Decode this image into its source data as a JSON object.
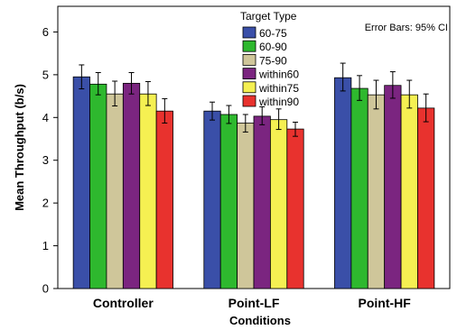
{
  "chart_data": {
    "type": "bar",
    "title": "",
    "xlabel": "Conditions",
    "ylabel": "Mean Throughput (b/s)",
    "ylim": [
      0,
      6.6
    ],
    "yticks": [
      "0",
      "1",
      "2",
      "3",
      "4",
      "5",
      "6"
    ],
    "grid": false,
    "legend_title": "Target Type",
    "legend_position": "top-center",
    "error_bar_note": "Error Bars: 95% CI",
    "categories": [
      "Controller",
      "Point-LF",
      "Point-HF"
    ],
    "series": [
      {
        "name": "60-75",
        "color": "#3a4fa8",
        "values": [
          4.95,
          4.15,
          4.93
        ],
        "ci": [
          [
            4.67,
            5.23
          ],
          [
            3.94,
            4.36
          ],
          [
            4.62,
            5.27
          ]
        ]
      },
      {
        "name": "60-90",
        "color": "#2eb82e",
        "values": [
          4.78,
          4.07,
          4.68
        ],
        "ci": [
          [
            4.53,
            5.05
          ],
          [
            3.86,
            4.28
          ],
          [
            4.4,
            4.98
          ]
        ]
      },
      {
        "name": "75-90",
        "color": "#cfc69a",
        "values": [
          4.55,
          3.87,
          4.53
        ],
        "ci": [
          [
            4.27,
            4.85
          ],
          [
            3.66,
            4.07
          ],
          [
            4.2,
            4.87
          ]
        ]
      },
      {
        "name": "within60",
        "color": "#7b2580",
        "values": [
          4.8,
          4.03,
          4.75
        ],
        "ci": [
          [
            4.55,
            5.05
          ],
          [
            3.83,
            4.25
          ],
          [
            4.45,
            5.07
          ]
        ]
      },
      {
        "name": "within75",
        "color": "#f5f052",
        "values": [
          4.55,
          3.95,
          4.53
        ],
        "ci": [
          [
            4.28,
            4.84
          ],
          [
            3.72,
            4.2
          ],
          [
            4.22,
            4.87
          ]
        ]
      },
      {
        "name": "within90",
        "color": "#e8322e",
        "values": [
          4.15,
          3.73,
          4.22
        ],
        "ci": [
          [
            3.87,
            4.44
          ],
          [
            3.56,
            3.89
          ],
          [
            3.9,
            4.55
          ]
        ]
      }
    ]
  }
}
